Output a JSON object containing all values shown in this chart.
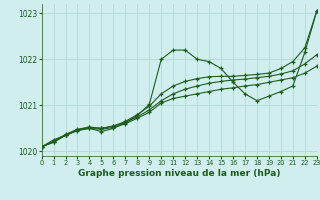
{
  "title": "Graphe pression niveau de la mer (hPa)",
  "bg_color": "#d0eeee",
  "line_color": "#1e5c1e",
  "grid_color": "#b0d8d8",
  "xlim": [
    0,
    23
  ],
  "ylim": [
    1019.9,
    1023.2
  ],
  "yticks": [
    1020,
    1021,
    1022,
    1023
  ],
  "xticks": [
    0,
    1,
    2,
    3,
    4,
    5,
    6,
    7,
    8,
    9,
    10,
    11,
    12,
    13,
    14,
    15,
    16,
    17,
    18,
    19,
    20,
    21,
    22,
    23
  ],
  "s1": {
    "x": [
      0,
      1,
      2,
      3,
      4,
      5,
      6,
      7,
      8,
      9,
      10,
      11,
      12,
      13,
      14,
      15,
      16,
      17,
      18,
      19,
      20,
      21,
      22,
      23
    ],
    "y": [
      1020.1,
      1020.2,
      1020.35,
      1020.45,
      1020.5,
      1020.48,
      1020.52,
      1020.6,
      1020.72,
      1020.85,
      1021.05,
      1021.15,
      1021.2,
      1021.25,
      1021.3,
      1021.35,
      1021.38,
      1021.42,
      1021.45,
      1021.5,
      1021.55,
      1021.6,
      1021.7,
      1021.85
    ]
  },
  "s2": {
    "x": [
      0,
      1,
      2,
      3,
      4,
      5,
      6,
      7,
      8,
      9,
      10,
      11,
      12,
      13,
      14,
      15,
      16,
      17,
      18,
      19,
      20,
      21,
      22,
      23
    ],
    "y": [
      1020.1,
      1020.2,
      1020.35,
      1020.46,
      1020.52,
      1020.5,
      1020.55,
      1020.63,
      1020.75,
      1020.9,
      1021.1,
      1021.25,
      1021.35,
      1021.42,
      1021.48,
      1021.52,
      1021.55,
      1021.57,
      1021.6,
      1021.63,
      1021.68,
      1021.75,
      1021.9,
      1022.1
    ]
  },
  "s3": {
    "x": [
      0,
      1,
      2,
      3,
      4,
      5,
      6,
      7,
      8,
      9,
      10,
      11,
      12,
      13,
      14,
      15,
      16,
      17,
      18,
      19,
      20,
      21,
      22,
      23
    ],
    "y": [
      1020.1,
      1020.22,
      1020.37,
      1020.48,
      1020.53,
      1020.5,
      1020.55,
      1020.65,
      1020.8,
      1020.98,
      1021.25,
      1021.42,
      1021.52,
      1021.58,
      1021.62,
      1021.63,
      1021.63,
      1021.65,
      1021.67,
      1021.7,
      1021.8,
      1021.95,
      1022.25,
      1023.05
    ]
  },
  "s4": {
    "x": [
      0,
      1,
      2,
      3,
      4,
      5,
      6,
      7,
      8,
      9,
      10,
      11,
      12,
      13,
      14,
      15,
      16,
      17,
      18,
      19,
      20,
      21,
      22,
      23
    ],
    "y": [
      1020.1,
      1020.25,
      1020.35,
      1020.47,
      1020.5,
      1020.43,
      1020.5,
      1020.62,
      1020.78,
      1021.02,
      1022.0,
      1022.2,
      1022.2,
      1022.0,
      1021.95,
      1021.8,
      1021.5,
      1021.25,
      1021.1,
      1021.2,
      1021.3,
      1021.42,
      1022.15,
      1023.05
    ]
  }
}
